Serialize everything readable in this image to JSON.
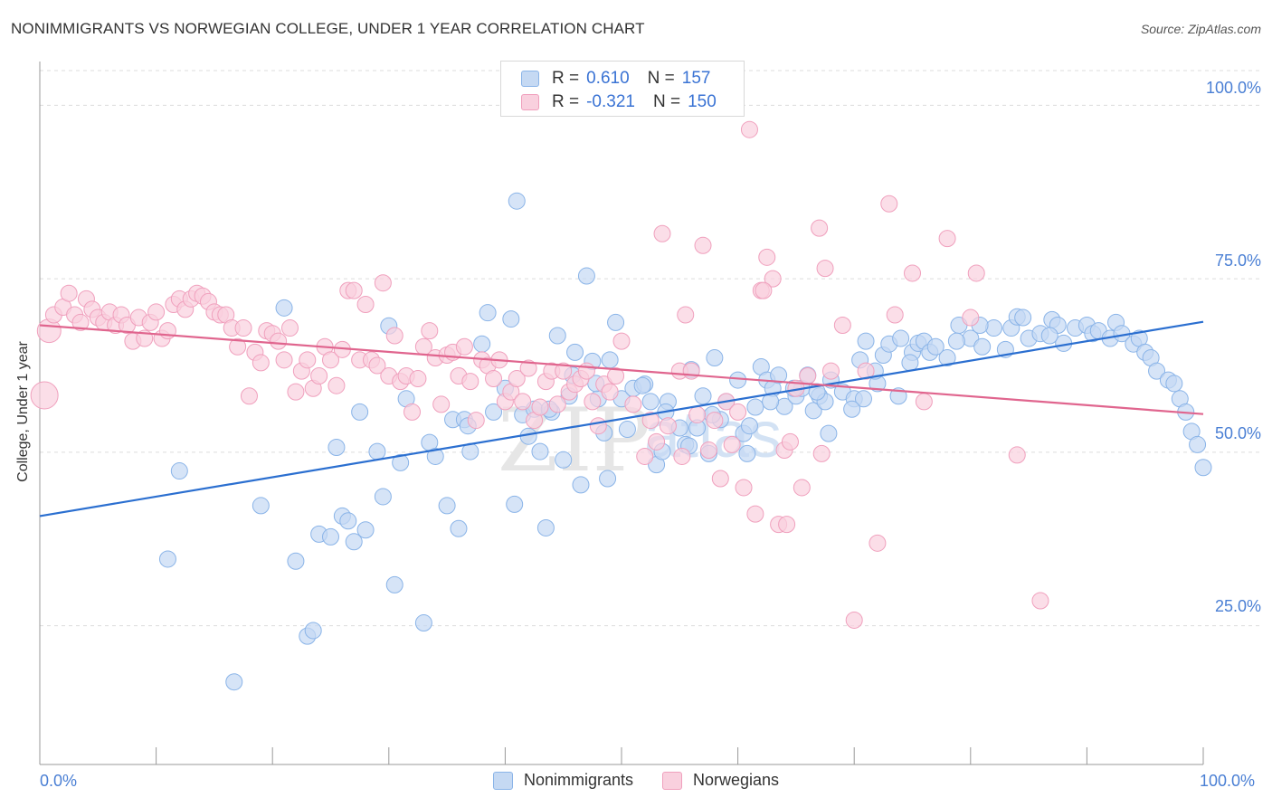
{
  "title": "NONIMMIGRANTS VS NORWEGIAN COLLEGE, UNDER 1 YEAR CORRELATION CHART",
  "source": "Source: ZipAtlas.com",
  "watermark": {
    "zip": "ZIP",
    "atlas": "atlas"
  },
  "legend_stats": [
    {
      "r_label": "R =",
      "r_value": "0.610",
      "n_label": "N =",
      "n_value": "157"
    },
    {
      "r_label": "R =",
      "r_value": "-0.321",
      "n_label": "N =",
      "n_value": "150"
    }
  ],
  "chart_data": {
    "type": "scatter",
    "title": "NONIMMIGRANTS VS NORWEGIAN COLLEGE, UNDER 1 YEAR CORRELATION CHART",
    "xlabel": "",
    "ylabel": "College, Under 1 year",
    "xlim": [
      0,
      100
    ],
    "ylim": [
      5,
      105
    ],
    "x_tick_labels": [
      "0.0%",
      "100.0%"
    ],
    "y_tick_labels": [
      "25.0%",
      "50.0%",
      "75.0%",
      "100.0%"
    ],
    "y_ticks": [
      25,
      50,
      75,
      100
    ],
    "grid": true,
    "legend_position": "bottom",
    "series": [
      {
        "name": "Nonimmigrants",
        "color": "#8ab4e8",
        "fill": "#c5d9f3",
        "trend_color": "#2b6fd0",
        "trend": {
          "x": [
            0,
            100
          ],
          "y": [
            40.8,
            68.8
          ]
        },
        "points": [
          [
            12,
            47.3
          ],
          [
            11,
            34.6
          ],
          [
            16.7,
            16.9
          ],
          [
            19,
            42.3
          ],
          [
            21,
            70.8
          ],
          [
            22,
            34.3
          ],
          [
            23,
            23.5
          ],
          [
            23.5,
            24.3
          ],
          [
            24,
            38.2
          ],
          [
            25,
            37.8
          ],
          [
            25.5,
            50.7
          ],
          [
            26,
            40.8
          ],
          [
            26.5,
            40.1
          ],
          [
            27,
            37.1
          ],
          [
            27.5,
            55.8
          ],
          [
            28,
            38.8
          ],
          [
            29,
            50.1
          ],
          [
            29.5,
            43.6
          ],
          [
            30,
            68.2
          ],
          [
            30.5,
            30.9
          ],
          [
            31,
            48.5
          ],
          [
            31.5,
            57.7
          ],
          [
            33,
            25.4
          ],
          [
            33.5,
            51.4
          ],
          [
            34,
            49.4
          ],
          [
            35,
            42.3
          ],
          [
            35.5,
            54.7
          ],
          [
            36,
            39.0
          ],
          [
            36.5,
            54.7
          ],
          [
            37,
            50.1
          ],
          [
            38,
            65.6
          ],
          [
            38.5,
            70.1
          ],
          [
            39,
            55.8
          ],
          [
            40,
            59.2
          ],
          [
            40.5,
            69.2
          ],
          [
            40.8,
            42.5
          ],
          [
            41,
            86.2
          ],
          [
            41.5,
            55.4
          ],
          [
            42,
            52.3
          ],
          [
            42.5,
            56.2
          ],
          [
            43,
            50.1
          ],
          [
            43.5,
            39.1
          ],
          [
            44,
            55.8
          ],
          [
            44.5,
            66.8
          ],
          [
            45,
            48.9
          ],
          [
            45.5,
            58.1
          ],
          [
            46,
            64.4
          ],
          [
            46.5,
            45.3
          ],
          [
            47,
            75.4
          ],
          [
            47.5,
            63.1
          ],
          [
            48,
            57.7
          ],
          [
            48.5,
            52.8
          ],
          [
            49,
            63.3
          ],
          [
            49.5,
            68.7
          ],
          [
            50,
            57.7
          ],
          [
            50.5,
            53.3
          ],
          [
            51,
            59.2
          ],
          [
            52,
            59.8
          ],
          [
            52.5,
            57.3
          ],
          [
            53,
            48.2
          ],
          [
            53.5,
            50.1
          ],
          [
            54,
            57.3
          ],
          [
            55,
            53.5
          ],
          [
            55.5,
            51.1
          ],
          [
            56,
            61.9
          ],
          [
            56.5,
            53.5
          ],
          [
            57,
            58.1
          ],
          [
            57.5,
            49.8
          ],
          [
            58,
            63.6
          ],
          [
            59,
            57.3
          ],
          [
            60,
            60.4
          ],
          [
            60.5,
            52.7
          ],
          [
            61,
            53.8
          ],
          [
            61.5,
            56.5
          ],
          [
            62,
            62.3
          ],
          [
            62.5,
            60.4
          ],
          [
            63,
            59.2
          ],
          [
            63.5,
            61.1
          ],
          [
            64,
            56.6
          ],
          [
            65,
            58.1
          ],
          [
            65.5,
            59.2
          ],
          [
            66,
            61.1
          ],
          [
            66.5,
            56.0
          ],
          [
            67,
            58.1
          ],
          [
            67.5,
            57.3
          ],
          [
            68,
            60.4
          ],
          [
            69,
            58.7
          ],
          [
            70,
            57.7
          ],
          [
            70.5,
            63.3
          ],
          [
            71,
            66.0
          ],
          [
            72,
            59.9
          ],
          [
            72.5,
            64.0
          ],
          [
            73,
            65.6
          ],
          [
            74,
            66.4
          ],
          [
            75,
            64.4
          ],
          [
            75.5,
            65.7
          ],
          [
            76,
            66.0
          ],
          [
            76.5,
            64.4
          ],
          [
            77,
            65.2
          ],
          [
            78,
            63.6
          ],
          [
            79,
            68.3
          ],
          [
            80,
            66.4
          ],
          [
            81,
            65.2
          ],
          [
            82,
            67.9
          ],
          [
            83,
            64.8
          ],
          [
            83.5,
            67.9
          ],
          [
            84,
            69.5
          ],
          [
            84.5,
            69.4
          ],
          [
            85,
            66.4
          ],
          [
            86,
            67.1
          ],
          [
            87,
            69.1
          ],
          [
            87.5,
            68.3
          ],
          [
            88,
            65.7
          ],
          [
            89,
            67.9
          ],
          [
            90,
            68.3
          ],
          [
            90.5,
            67.1
          ],
          [
            91,
            67.5
          ],
          [
            92,
            66.4
          ],
          [
            92.5,
            68.7
          ],
          [
            93,
            67.1
          ],
          [
            94,
            65.6
          ],
          [
            94.5,
            66.4
          ],
          [
            95,
            64.4
          ],
          [
            95.5,
            63.6
          ],
          [
            96,
            61.7
          ],
          [
            97,
            60.4
          ],
          [
            97.5,
            59.9
          ],
          [
            98,
            57.7
          ],
          [
            98.5,
            55.8
          ],
          [
            99,
            53.0
          ],
          [
            99.5,
            51.1
          ],
          [
            100,
            47.8
          ],
          [
            58.5,
            54.7
          ],
          [
            43.8,
            56.2
          ],
          [
            36.8,
            53.8
          ],
          [
            48.8,
            46.2
          ],
          [
            53.8,
            55.8
          ],
          [
            62.8,
            57.3
          ],
          [
            70.8,
            57.7
          ],
          [
            74.8,
            62.9
          ],
          [
            78.8,
            66.0
          ],
          [
            67.8,
            52.7
          ],
          [
            55.8,
            50.9
          ],
          [
            47.8,
            59.9
          ],
          [
            60.8,
            49.8
          ],
          [
            64.8,
            59.2
          ],
          [
            57.8,
            55.4
          ],
          [
            69.8,
            56.2
          ],
          [
            73.8,
            58.1
          ],
          [
            80.8,
            68.3
          ],
          [
            86.8,
            66.8
          ],
          [
            71.8,
            61.7
          ],
          [
            66.8,
            58.7
          ],
          [
            51.8,
            59.6
          ],
          [
            45.8,
            61.1
          ]
        ]
      },
      {
        "name": "Norwegians",
        "color": "#f0a0bd",
        "fill": "#f9d0de",
        "trend_color": "#e0658e",
        "trend": {
          "x": [
            0,
            100
          ],
          "y": [
            68.3,
            55.5
          ]
        },
        "points": [
          [
            0.4,
            58.2
          ],
          [
            0.8,
            67.5
          ],
          [
            1.2,
            69.8
          ],
          [
            2,
            70.9
          ],
          [
            2.5,
            72.9
          ],
          [
            3,
            69.8
          ],
          [
            3.5,
            68.7
          ],
          [
            4,
            72.1
          ],
          [
            4.5,
            70.6
          ],
          [
            5,
            69.4
          ],
          [
            5.5,
            68.7
          ],
          [
            6,
            70.2
          ],
          [
            6.5,
            68.3
          ],
          [
            7,
            69.8
          ],
          [
            7.5,
            68.3
          ],
          [
            8,
            66.0
          ],
          [
            8.5,
            69.4
          ],
          [
            9,
            66.4
          ],
          [
            9.5,
            68.7
          ],
          [
            10,
            70.2
          ],
          [
            10.5,
            66.4
          ],
          [
            11,
            67.5
          ],
          [
            11.5,
            71.3
          ],
          [
            12,
            72.1
          ],
          [
            12.5,
            70.6
          ],
          [
            13,
            72.1
          ],
          [
            13.5,
            72.9
          ],
          [
            14,
            72.5
          ],
          [
            14.5,
            71.7
          ],
          [
            15,
            70.2
          ],
          [
            15.5,
            69.8
          ],
          [
            16,
            69.8
          ],
          [
            16.5,
            67.9
          ],
          [
            17,
            65.2
          ],
          [
            17.5,
            67.9
          ],
          [
            18,
            58.1
          ],
          [
            18.5,
            64.4
          ],
          [
            19,
            62.9
          ],
          [
            19.5,
            67.5
          ],
          [
            20,
            67.1
          ],
          [
            20.5,
            66.0
          ],
          [
            21,
            63.3
          ],
          [
            21.5,
            67.9
          ],
          [
            22,
            58.7
          ],
          [
            22.5,
            61.7
          ],
          [
            23,
            63.3
          ],
          [
            23.5,
            59.2
          ],
          [
            24,
            61.0
          ],
          [
            24.5,
            65.2
          ],
          [
            25,
            63.3
          ],
          [
            25.5,
            59.6
          ],
          [
            26,
            64.8
          ],
          [
            26.5,
            73.3
          ],
          [
            27,
            73.3
          ],
          [
            27.5,
            63.3
          ],
          [
            28,
            71.3
          ],
          [
            28.5,
            63.3
          ],
          [
            29,
            62.5
          ],
          [
            29.5,
            74.4
          ],
          [
            30,
            61.0
          ],
          [
            30.5,
            66.8
          ],
          [
            31,
            60.2
          ],
          [
            31.5,
            61.0
          ],
          [
            32,
            55.8
          ],
          [
            32.5,
            60.6
          ],
          [
            33,
            65.2
          ],
          [
            33.5,
            67.5
          ],
          [
            34,
            63.6
          ],
          [
            34.5,
            56.9
          ],
          [
            35,
            64.0
          ],
          [
            35.5,
            64.4
          ],
          [
            36,
            61.0
          ],
          [
            36.5,
            65.2
          ],
          [
            37,
            60.2
          ],
          [
            37.5,
            54.6
          ],
          [
            38,
            63.3
          ],
          [
            38.5,
            62.5
          ],
          [
            39,
            60.6
          ],
          [
            39.5,
            63.3
          ],
          [
            40,
            57.3
          ],
          [
            40.5,
            58.7
          ],
          [
            41,
            60.6
          ],
          [
            41.5,
            57.3
          ],
          [
            42,
            62.1
          ],
          [
            42.5,
            54.6
          ],
          [
            43,
            56.5
          ],
          [
            43.5,
            60.2
          ],
          [
            44,
            61.7
          ],
          [
            44.5,
            56.9
          ],
          [
            45,
            61.7
          ],
          [
            45.5,
            58.7
          ],
          [
            46,
            59.8
          ],
          [
            46.5,
            60.6
          ],
          [
            47,
            61.7
          ],
          [
            47.5,
            57.3
          ],
          [
            48,
            53.8
          ],
          [
            48.5,
            59.8
          ],
          [
            49,
            58.7
          ],
          [
            49.5,
            61.0
          ],
          [
            50,
            66.0
          ],
          [
            51,
            56.9
          ],
          [
            52,
            49.4
          ],
          [
            52.5,
            54.6
          ],
          [
            53,
            51.5
          ],
          [
            53.5,
            81.5
          ],
          [
            54,
            53.8
          ],
          [
            55,
            61.7
          ],
          [
            55.5,
            69.8
          ],
          [
            56,
            61.7
          ],
          [
            56.5,
            55.4
          ],
          [
            57,
            79.8
          ],
          [
            57.5,
            50.3
          ],
          [
            58,
            54.6
          ],
          [
            58.5,
            46.2
          ],
          [
            59,
            57.3
          ],
          [
            59.5,
            51.1
          ],
          [
            60,
            55.8
          ],
          [
            60.5,
            44.9
          ],
          [
            61,
            96.5
          ],
          [
            61.5,
            41.1
          ],
          [
            62,
            73.3
          ],
          [
            62.5,
            78.1
          ],
          [
            63,
            75.0
          ],
          [
            63.5,
            39.6
          ],
          [
            64,
            50.3
          ],
          [
            64.5,
            51.5
          ],
          [
            65,
            59.2
          ],
          [
            65.5,
            44.9
          ],
          [
            66,
            61.0
          ],
          [
            67,
            82.3
          ],
          [
            67.5,
            76.5
          ],
          [
            68,
            61.7
          ],
          [
            69,
            68.3
          ],
          [
            70,
            25.8
          ],
          [
            71,
            61.7
          ],
          [
            72,
            36.9
          ],
          [
            73,
            85.8
          ],
          [
            73.5,
            69.8
          ],
          [
            75,
            75.8
          ],
          [
            76,
            57.3
          ],
          [
            78,
            80.8
          ],
          [
            80,
            69.4
          ],
          [
            80.5,
            75.8
          ],
          [
            84,
            49.6
          ],
          [
            86,
            28.6
          ],
          [
            62.2,
            73.3
          ],
          [
            55.2,
            49.4
          ],
          [
            64.2,
            39.6
          ],
          [
            67.2,
            49.8
          ]
        ]
      }
    ]
  }
}
